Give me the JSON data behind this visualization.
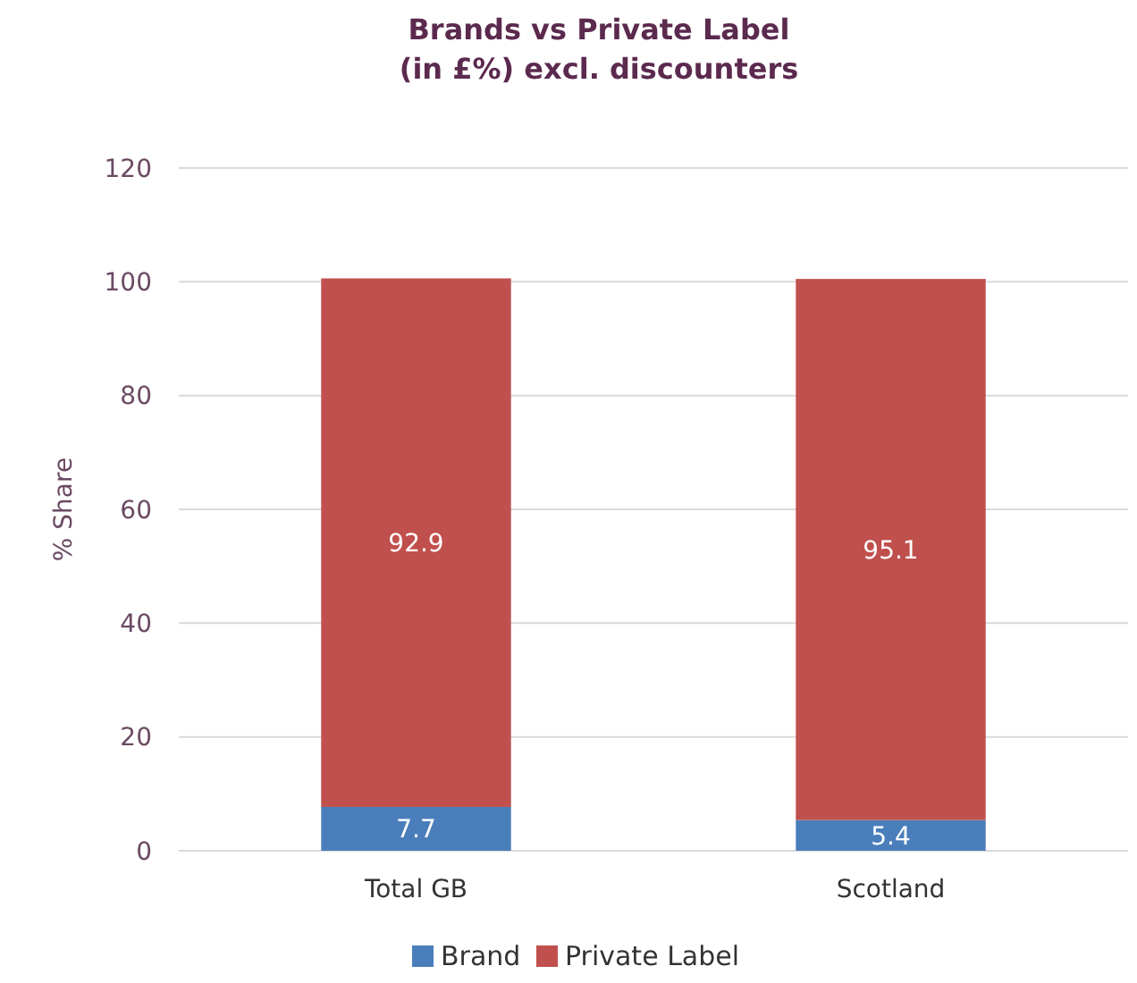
{
  "chart_data": {
    "type": "bar",
    "title": "Brands vs Private Label\n(in £%) excl. discounters",
    "ylabel": "% Share",
    "categories": [
      "Total GB",
      "Scotland"
    ],
    "stacked": true,
    "series": [
      {
        "name": "Brand",
        "color": "#4a7ebb",
        "values": [
          7.7,
          5.4
        ]
      },
      {
        "name": "Private Label",
        "color": "#c0504d",
        "values": [
          92.9,
          95.1
        ]
      }
    ],
    "ylim": [
      0,
      120
    ],
    "yticks": [
      0,
      20,
      40,
      60,
      80,
      100,
      120
    ],
    "grid": "y",
    "legend": "bottom",
    "data_labels": true
  }
}
